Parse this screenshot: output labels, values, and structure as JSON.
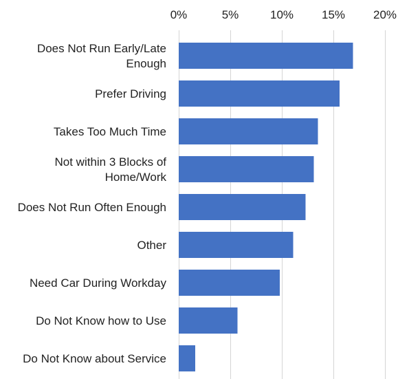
{
  "chart_data": {
    "type": "bar",
    "orientation": "horizontal",
    "title": "",
    "xlabel": "",
    "ylabel": "",
    "categories": [
      [
        "Does Not Run Early/Late",
        "Enough"
      ],
      [
        "Prefer Driving"
      ],
      [
        "Takes Too Much Time"
      ],
      [
        "Not within 3 Blocks of",
        "Home/Work"
      ],
      [
        "Does Not Run Often Enough"
      ],
      [
        "Other"
      ],
      [
        "Need Car During Workday"
      ],
      [
        "Do Not Know how to Use"
      ],
      [
        "Do Not Know about Service"
      ]
    ],
    "values": [
      16.9,
      15.6,
      13.5,
      13.1,
      12.3,
      11.1,
      9.8,
      5.7,
      1.6
    ],
    "xlim": [
      0,
      20
    ],
    "x_ticks": [
      0,
      5,
      10,
      15,
      20
    ],
    "x_tick_labels": [
      "0%",
      "5%",
      "10%",
      "15%",
      "20%"
    ],
    "x_axis_position": "top",
    "grid": true,
    "bar_color": "#4472c4",
    "gridline_color": "#d4d4d4",
    "text_color": "#222222"
  }
}
